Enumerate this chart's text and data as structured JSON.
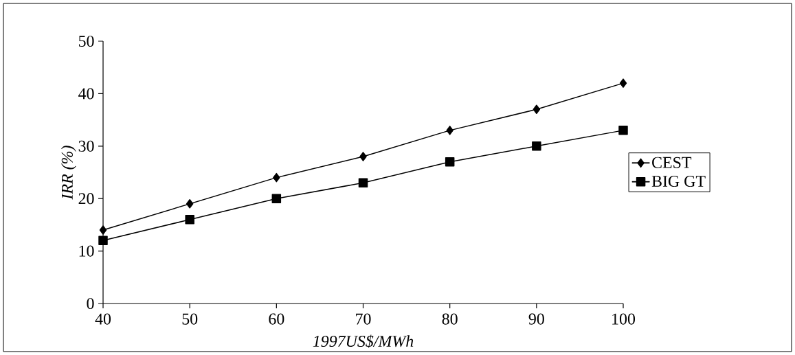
{
  "chart_data": {
    "type": "line",
    "xlabel": "1997US$/MWh",
    "ylabel": "IRR (%)",
    "x": [
      40,
      50,
      60,
      70,
      80,
      90,
      100
    ],
    "series": [
      {
        "name": "CEST",
        "color": "#000000",
        "marker": "diamond",
        "values": [
          14,
          19,
          24,
          28,
          33,
          37,
          42
        ]
      },
      {
        "name": "BIG GT",
        "color": "#000000",
        "marker": "square",
        "values": [
          12,
          16,
          20,
          23,
          27,
          30,
          33
        ]
      }
    ],
    "xlim": [
      40,
      100
    ],
    "xticks": [
      40,
      50,
      60,
      70,
      80,
      90,
      100
    ],
    "ylim": [
      0,
      50
    ],
    "yticks": [
      0,
      10,
      20,
      30,
      40,
      50
    ],
    "legend": "right",
    "grid": false,
    "line_style": "solid"
  }
}
